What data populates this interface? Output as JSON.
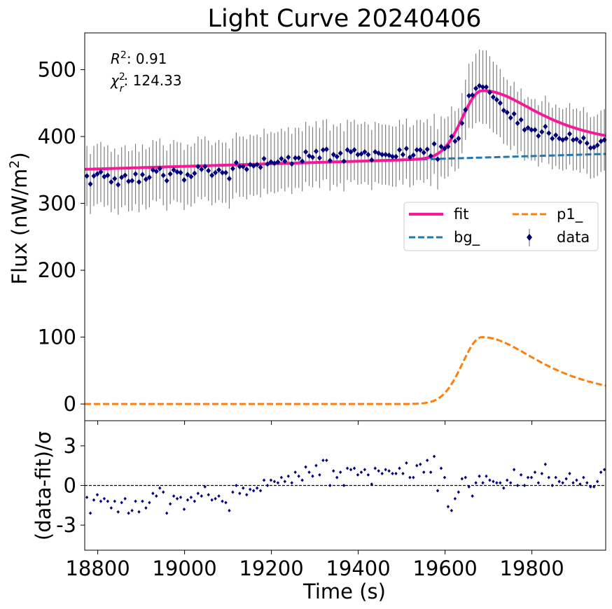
{
  "chart_data": {
    "type": "line",
    "title": "Light Curve 20240406",
    "annotations": {
      "r2": {
        "symbol": "R",
        "sup": "2",
        "value": ": 0.91"
      },
      "chi2": {
        "symbol": "χ",
        "sup": "2",
        "sub": "r",
        "value": ": 124.33"
      }
    },
    "top_panel": {
      "ylabel": "Flux (nW/m",
      "ylabel_sup": "2",
      "ylabel_end": ")",
      "ylim": [
        -25,
        555
      ],
      "yticks": [
        0,
        100,
        200,
        300,
        400,
        500
      ],
      "yticklabels": [
        "0",
        "100",
        "200",
        "300",
        "400",
        "500"
      ],
      "legend": {
        "position": "center-right",
        "entries": [
          {
            "label": "fit",
            "style": "line",
            "color": "#f7189a"
          },
          {
            "label": "p1_",
            "style": "dashed",
            "color": "#ff7f0e"
          },
          {
            "label": "bg_",
            "style": "dashed",
            "color": "#1f77b4"
          },
          {
            "label": "data",
            "style": "marker",
            "color": "#00007f"
          }
        ]
      },
      "model": {
        "bg_start": 351,
        "bg_end": 374,
        "p1_peak_time": 19685,
        "p1_amplitude": 100,
        "p1_rise": 45,
        "p1_decay": 175
      },
      "data_x": [
        18775,
        18783,
        18791,
        18799,
        18807,
        18815,
        18823,
        18831,
        18839,
        18847,
        18855,
        18863,
        18871,
        18879,
        18887,
        18895,
        18903,
        18911,
        18919,
        18927,
        18935,
        18943,
        18951,
        18959,
        18967,
        18975,
        18983,
        18991,
        18999,
        19007,
        19015,
        19023,
        19031,
        19039,
        19047,
        19055,
        19063,
        19071,
        19079,
        19087,
        19095,
        19103,
        19111,
        19119,
        19127,
        19135,
        19143,
        19151,
        19159,
        19167,
        19175,
        19183,
        19191,
        19199,
        19207,
        19215,
        19223,
        19231,
        19239,
        19247,
        19255,
        19263,
        19271,
        19279,
        19287,
        19295,
        19303,
        19311,
        19319,
        19327,
        19335,
        19343,
        19351,
        19359,
        19367,
        19375,
        19383,
        19391,
        19399,
        19407,
        19415,
        19423,
        19431,
        19439,
        19447,
        19455,
        19463,
        19471,
        19479,
        19487,
        19495,
        19503,
        19511,
        19519,
        19527,
        19535,
        19543,
        19551,
        19559,
        19567,
        19575,
        19583,
        19591,
        19599,
        19607,
        19615,
        19623,
        19631,
        19639,
        19647,
        19655,
        19663,
        19671,
        19679,
        19687,
        19695,
        19703,
        19711,
        19719,
        19727,
        19735,
        19743,
        19751,
        19759,
        19767,
        19775,
        19783,
        19791,
        19799,
        19807,
        19815,
        19823,
        19831,
        19839,
        19847,
        19855,
        19863,
        19871,
        19879,
        19887,
        19895,
        19903,
        19911,
        19919,
        19927,
        19935,
        19943,
        19951,
        19959,
        19967
      ],
      "data_y": [
        341,
        329,
        341,
        344,
        347,
        340,
        342,
        332,
        337,
        328,
        339,
        342,
        333,
        334,
        344,
        332,
        343,
        336,
        339,
        350,
        348,
        352,
        342,
        334,
        344,
        350,
        347,
        346,
        335,
        343,
        340,
        345,
        355,
        351,
        355,
        349,
        342,
        346,
        350,
        346,
        346,
        337,
        352,
        361,
        355,
        355,
        351,
        358,
        356,
        358,
        354,
        367,
        359,
        362,
        360,
        362,
        367,
        363,
        369,
        359,
        368,
        368,
        363,
        377,
        371,
        369,
        378,
        368,
        380,
        381,
        364,
        373,
        370,
        375,
        363,
        380,
        377,
        380,
        373,
        374,
        377,
        373,
        365,
        377,
        375,
        373,
        373,
        372,
        370,
        370,
        380,
        373,
        382,
        369,
        372,
        380,
        380,
        376,
        381,
        371,
        389,
        366,
        385,
        382,
        385,
        400,
        393,
        397,
        420,
        440,
        461,
        462,
        472,
        476,
        474,
        474,
        466,
        459,
        455,
        450,
        439,
        436,
        428,
        434,
        420,
        425,
        410,
        413,
        410,
        410,
        401,
        407,
        415,
        405,
        397,
        402,
        397,
        395,
        397,
        404,
        395,
        396,
        392,
        398,
        390,
        383,
        384,
        387,
        393,
        395
      ],
      "data_err": [
        45,
        45,
        45,
        45,
        45,
        45,
        45,
        45,
        45,
        45,
        45,
        45,
        45,
        45,
        45,
        45,
        45,
        45,
        45,
        45,
        45,
        45,
        45,
        45,
        45,
        45,
        45,
        45,
        45,
        45,
        45,
        45,
        45,
        45,
        45,
        45,
        45,
        45,
        45,
        45,
        45,
        45,
        45,
        45,
        45,
        45,
        45,
        45,
        45,
        45,
        45,
        45,
        45,
        45,
        45,
        45,
        45,
        45,
        45,
        45,
        45,
        45,
        45,
        45,
        45,
        45,
        45,
        45,
        45,
        45,
        45,
        45,
        45,
        45,
        45,
        45,
        45,
        45,
        45,
        45,
        45,
        45,
        45,
        45,
        45,
        45,
        45,
        45,
        45,
        45,
        45,
        45,
        45,
        45,
        45,
        45,
        45,
        45,
        45,
        45,
        45,
        45,
        45,
        45,
        45,
        45,
        45,
        45,
        45,
        45,
        48,
        50,
        52,
        54,
        55,
        55,
        54,
        53,
        52,
        51,
        50,
        49,
        48,
        48,
        47,
        47,
        46,
        46,
        46,
        46,
        46,
        46,
        46,
        46,
        46,
        46,
        46,
        46,
        46,
        46,
        46,
        46,
        46,
        46,
        46,
        46,
        46,
        46,
        46,
        46
      ]
    },
    "bottom_panel": {
      "ylabel": "(data-fit)/σ",
      "ylim": [
        -4.9,
        4.9
      ],
      "yticks": [
        -3,
        0,
        3
      ],
      "yticklabels": [
        "-3",
        "0",
        "3"
      ],
      "reference_line": 0,
      "residuals": [
        -0.9,
        -2.1,
        -1.1,
        -0.7,
        -1.2,
        -1.0,
        -1.2,
        -1.7,
        -1.2,
        -2.0,
        -1.3,
        -1.0,
        -2.1,
        -1.9,
        -1.2,
        -2.0,
        -1.2,
        -1.7,
        -1.3,
        -0.6,
        -0.8,
        -0.2,
        -0.5,
        -2.1,
        -1.4,
        -0.8,
        -1.0,
        -0.9,
        -1.8,
        -1.1,
        -0.9,
        -1.2,
        -0.6,
        -0.8,
        -0.1,
        -0.7,
        -1.1,
        -1.0,
        -0.8,
        -1.2,
        -1.3,
        -1.9,
        -0.5,
        0.0,
        -0.6,
        -0.2,
        -0.7,
        -0.3,
        -0.4,
        -0.2,
        -0.4,
        0.4,
        0.0,
        0.4,
        0.3,
        0.2,
        0.6,
        0.3,
        0.7,
        0.2,
        1.0,
        0.7,
        0.4,
        1.4,
        1.0,
        0.7,
        1.5,
        0.8,
        1.9,
        1.9,
        0.0,
        1.1,
        0.6,
        1.0,
        0.0,
        1.3,
        1.2,
        1.3,
        0.8,
        1.0,
        1.2,
        0.8,
        0.1,
        1.3,
        1.1,
        0.9,
        1.2,
        1.1,
        0.9,
        0.9,
        1.3,
        0.9,
        1.7,
        0.6,
        0.6,
        1.5,
        1.6,
        1.0,
        1.9,
        1.0,
        2.2,
        -0.4,
        1.3,
        0.6,
        -1.6,
        -1.9,
        -1.0,
        -0.5,
        0.5,
        0.6,
        -0.1,
        -0.8,
        0.2,
        0.7,
        0.2,
        0.7,
        0.4,
        0.3,
        0.2,
        0.2,
        -0.2,
        0.4,
        0.2,
        1.2,
        0.0,
        0.8,
        0.0,
        0.6,
        0.6,
        1.0,
        0.2,
        0.9,
        1.6,
        0.6,
        0.0,
        0.6,
        0.3,
        0.2,
        0.5,
        0.9,
        0.2,
        0.4,
        0.1,
        0.6,
        0.2,
        -0.1,
        -0.1,
        0.3,
        1.0,
        1.2
      ]
    },
    "xlabel": "Time (s)",
    "xlim": [
      18770,
      19970
    ],
    "xticks": [
      18800,
      19000,
      19200,
      19400,
      19600,
      19800
    ],
    "xticklabels": [
      "18800",
      "19000",
      "19200",
      "19400",
      "19600",
      "19800"
    ],
    "grid": false
  }
}
